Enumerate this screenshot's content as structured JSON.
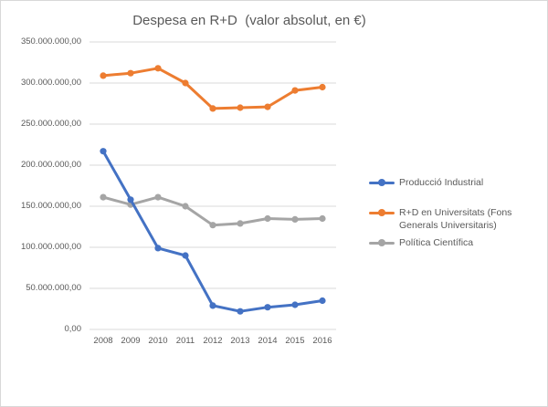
{
  "chart_data": {
    "type": "line",
    "title": "Despesa en R+D  (valor absolut, en €)",
    "categories": [
      "2008",
      "2009",
      "2010",
      "2011",
      "2012",
      "2013",
      "2014",
      "2015",
      "2016"
    ],
    "series": [
      {
        "name": "Producció Industrial",
        "color": "#4472C4",
        "values": [
          217000000,
          158000000,
          99000000,
          90000000,
          29000000,
          22000000,
          27000000,
          30000000,
          35000000
        ]
      },
      {
        "name": "R+D en Universitats (Fons Generals Universitaris)",
        "color": "#ED7D31",
        "values": [
          309000000,
          312000000,
          318000000,
          300000000,
          269000000,
          270000000,
          271000000,
          291000000,
          295000000
        ]
      },
      {
        "name": "Política Científica",
        "color": "#A5A5A5",
        "values": [
          161000000,
          152000000,
          161000000,
          150000000,
          127000000,
          129000000,
          135000000,
          134000000,
          135000000
        ]
      }
    ],
    "y_axis": {
      "min": 0,
      "max": 350000000,
      "tick_step": 50000000,
      "tick_labels": [
        "350.000.000,00",
        "300.000.000,00",
        "250.000.000,00",
        "200.000.000,00",
        "150.000.000,00",
        "100.000.000,00",
        "50.000.000,00",
        "0,00"
      ]
    },
    "grid": true,
    "legend_position": "right"
  },
  "colors": {
    "background": "#FFFFFF",
    "border": "#D8D8D8",
    "gridline": "#D9D9D9",
    "title_text": "#595959",
    "axis_text": "#595959",
    "legend_text": "#595959"
  }
}
